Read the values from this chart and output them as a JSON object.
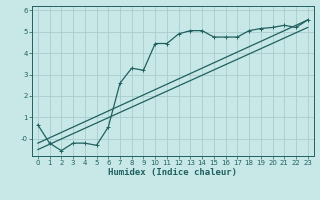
{
  "xlabel": "Humidex (Indice chaleur)",
  "bg_color": "#c8e8e8",
  "grid_color": "#a8cccc",
  "line_color": "#206060",
  "spine_color": "#206060",
  "xlim": [
    -0.5,
    23.5
  ],
  "ylim": [
    -0.8,
    6.2
  ],
  "yticks": [
    0,
    1,
    2,
    3,
    4,
    5,
    6
  ],
  "yticklabels": [
    "-0",
    "1",
    "2",
    "3",
    "4",
    "5",
    "6"
  ],
  "xticks": [
    0,
    1,
    2,
    3,
    4,
    5,
    6,
    7,
    8,
    9,
    10,
    11,
    12,
    13,
    14,
    15,
    16,
    17,
    18,
    19,
    20,
    21,
    22,
    23
  ],
  "main_x": [
    0,
    1,
    2,
    3,
    4,
    5,
    6,
    7,
    8,
    9,
    10,
    11,
    12,
    13,
    14,
    15,
    16,
    17,
    18,
    19,
    20,
    21,
    22,
    23
  ],
  "main_y": [
    0.65,
    -0.2,
    -0.55,
    -0.2,
    -0.2,
    -0.3,
    0.55,
    2.6,
    3.3,
    3.2,
    4.45,
    4.45,
    4.9,
    5.05,
    5.05,
    4.75,
    4.75,
    4.75,
    5.05,
    5.15,
    5.2,
    5.3,
    5.2,
    5.55
  ],
  "ref_line1_x": [
    0,
    23
  ],
  "ref_line1_y": [
    -0.2,
    5.55
  ],
  "ref_line2_x": [
    0,
    23
  ],
  "ref_line2_y": [
    -0.5,
    5.2
  ],
  "xlabel_fontsize": 6.5,
  "tick_fontsize": 5.0,
  "line_width": 0.9,
  "marker_size": 2.5
}
